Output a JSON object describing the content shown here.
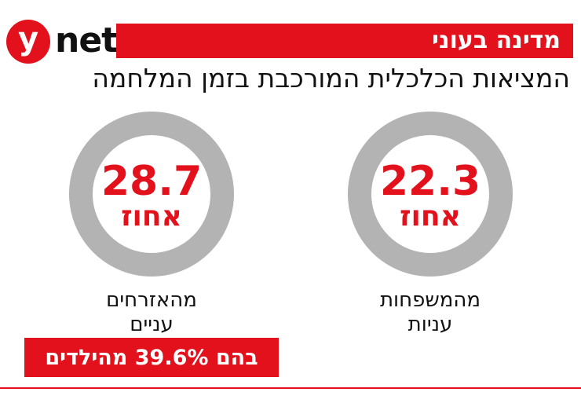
{
  "logo": {
    "letter": "y",
    "word": "net"
  },
  "banner": "מדינה בעוני",
  "subtitle": "המציאות הכלכלית המורכבת בזמן המלחמה",
  "colors": {
    "accent": "#e2111b",
    "ring": "#b3b3b3",
    "text": "#111111"
  },
  "chart_data": [
    {
      "type": "pie",
      "value": 28.7,
      "max": 100,
      "value_text": "28.7",
      "unit": "אחוז",
      "caption_line1": "מהאזרחים",
      "caption_line2": "עניים",
      "note": "בהם 39.6% מהילדים"
    },
    {
      "type": "pie",
      "value": 22.3,
      "max": 100,
      "value_text": "22.3",
      "unit": "אחוז",
      "caption_line1": "מהמשפחות",
      "caption_line2": "עניות"
    }
  ]
}
